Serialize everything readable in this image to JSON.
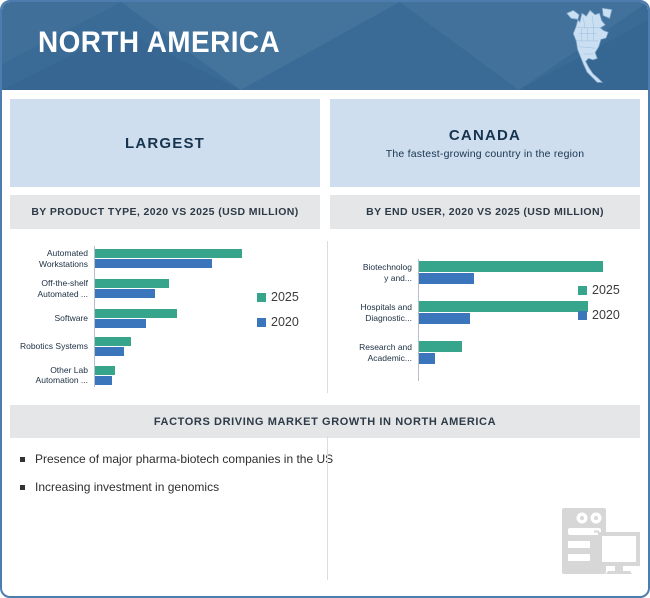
{
  "header": {
    "title": "NORTH AMERICA",
    "bg_color": "#3a6b97",
    "map_icon": "north-america-map-icon"
  },
  "highlight_boxes": {
    "left": {
      "title": "LARGEST"
    },
    "right": {
      "title": "CANADA",
      "subtitle": "The fastest-growing country in the region"
    }
  },
  "factors": {
    "header": "FACTORS DRIVING MARKET GROWTH IN NORTH AMERICA",
    "bullets": [
      "Presence of major pharma-biotech companies in the US",
      "Increasing investment in genomics"
    ]
  },
  "chart_data": [
    {
      "type": "bar",
      "orientation": "horizontal",
      "title": "BY PRODUCT TYPE, 2020 VS 2025 (USD MILLION)",
      "categories": [
        "Automated\nWorkstations",
        "Off-the-shelf\nAutomated ...",
        "Software",
        "Robotics Systems",
        "Other Lab\nAutomation ..."
      ],
      "series": [
        {
          "name": "2025",
          "color": "#36a58c",
          "values": [
            100,
            51,
            56,
            25,
            14
          ]
        },
        {
          "name": "2020",
          "color": "#3b75bb",
          "values": [
            80,
            41,
            35,
            20,
            12
          ]
        }
      ],
      "legend_position": "right",
      "value_axis": "none shown; values are relative estimates scaled to max bar = 100",
      "grid": false
    },
    {
      "type": "bar",
      "orientation": "horizontal",
      "title": "BY END USER, 2020 VS 2025 (USD MILLION)",
      "categories": [
        "Biotechnolog\ny and...",
        "Hospitals and\nDiagnostic...",
        "Research and\nAcademic..."
      ],
      "series": [
        {
          "name": "2025",
          "color": "#36a58c",
          "values": [
            100,
            92,
            24
          ]
        },
        {
          "name": "2020",
          "color": "#3b75bb",
          "values": [
            30,
            28,
            9
          ]
        }
      ],
      "legend_position": "right",
      "value_axis": "none shown; values are relative estimates scaled to max bar = 100",
      "grid": false
    }
  ],
  "colors": {
    "accent_green": "#36a58c",
    "accent_blue": "#3b75bb",
    "header_bg": "#3a6b97",
    "highlight_box_bg": "#cfdeee",
    "section_bar_bg": "#e5e6e8",
    "frame_border": "#4d7dae",
    "navy_text": "#17344f"
  }
}
